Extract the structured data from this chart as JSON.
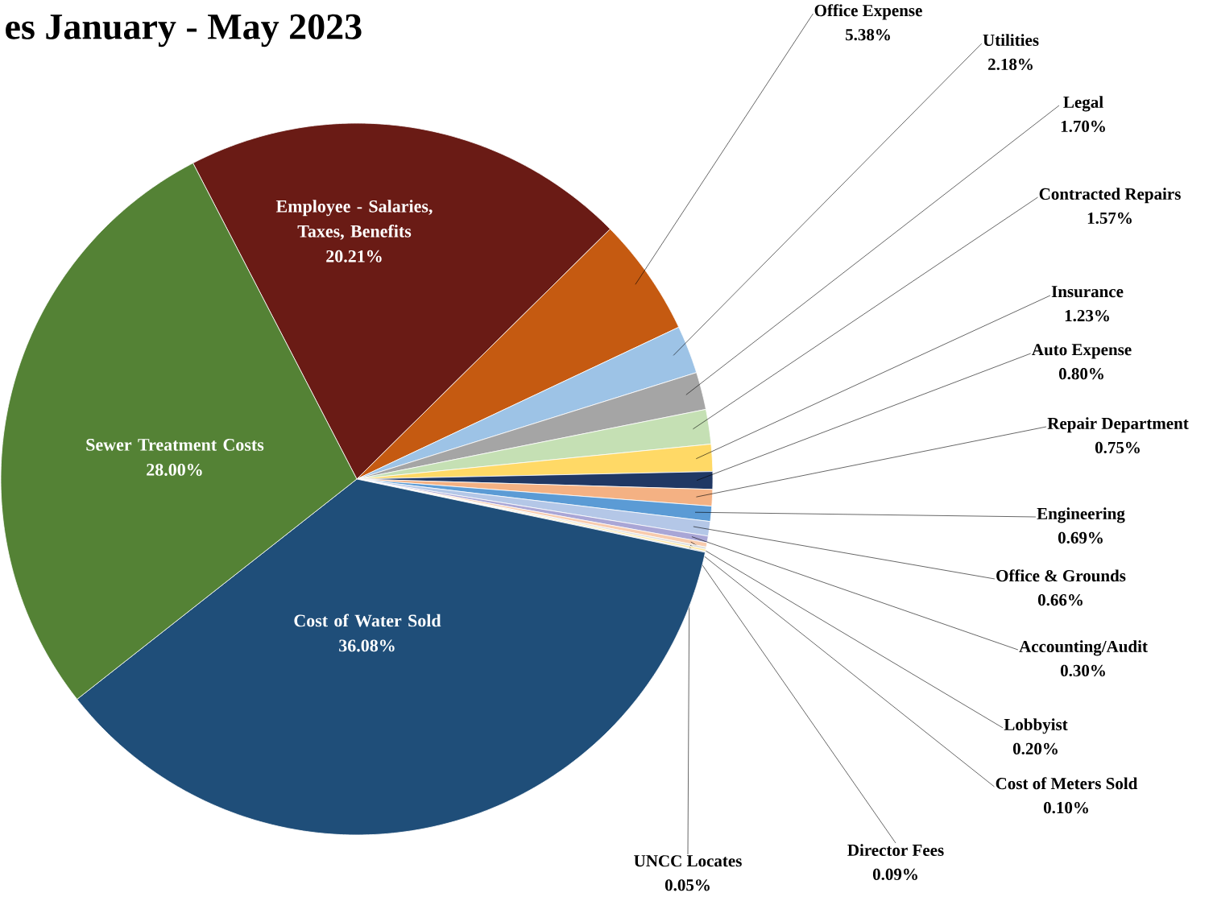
{
  "chart_data": {
    "type": "pie",
    "title": "es January - May 2023",
    "categories": [
      "Employee - Salaries, Taxes, Benefits",
      "Office Expense",
      "Utilities",
      "Legal",
      "Contracted Repairs",
      "Insurance",
      "Auto Expense",
      "Repair Department",
      "Engineering",
      "Office & Grounds",
      "Accounting/Audit",
      "Lobbyist",
      "Cost of Meters Sold",
      "Director Fees",
      "UNCC Locates",
      "Cost of Water Sold",
      "Sewer Treatment Costs"
    ],
    "values": [
      20.21,
      5.38,
      2.18,
      1.7,
      1.57,
      1.23,
      0.8,
      0.75,
      0.69,
      0.66,
      0.3,
      0.2,
      0.1,
      0.09,
      0.05,
      36.08,
      28.0
    ],
    "value_labels": [
      "20.21%",
      "5.38%",
      "2.18%",
      "1.70%",
      "1.57%",
      "1.23%",
      "0.80%",
      "0.75%",
      "0.69%",
      "0.66%",
      "0.30%",
      "0.20%",
      "0.10%",
      "0.09%",
      "0.05%",
      "36.08%",
      "28.00%"
    ],
    "colors": [
      "#6a1b15",
      "#c55a11",
      "#9dc3e6",
      "#a5a5a5",
      "#c5e0b4",
      "#ffd966",
      "#203864",
      "#f4b183",
      "#5b9bd5",
      "#b4c7e7",
      "#a9a6d6",
      "#f8cbad",
      "#dbdbdb",
      "#ffe699",
      "#c9c9c9",
      "#1f4e79",
      "#548235"
    ]
  }
}
